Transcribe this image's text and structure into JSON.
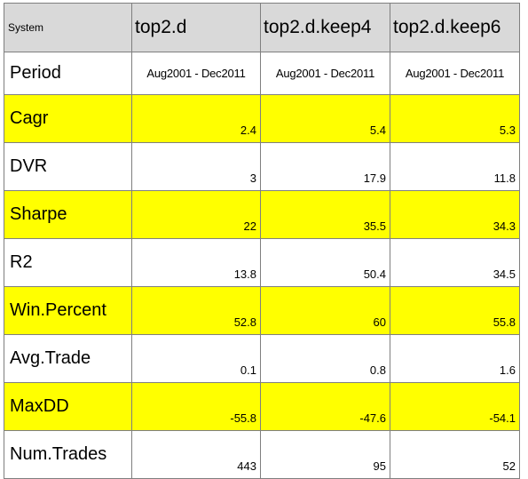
{
  "header": {
    "system_label": "System",
    "columns": [
      "top2.d",
      "top2.d.keep4",
      "top2.d.keep6"
    ]
  },
  "rows": [
    {
      "label": "Period",
      "values": [
        "Aug2001 - Dec2011",
        "Aug2001 - Dec2011",
        "Aug2001 - Dec2011"
      ],
      "highlight": false
    },
    {
      "label": "Cagr",
      "values": [
        "2.4",
        "5.4",
        "5.3"
      ],
      "highlight": true
    },
    {
      "label": "DVR",
      "values": [
        "3",
        "17.9",
        "11.8"
      ],
      "highlight": false
    },
    {
      "label": "Sharpe",
      "values": [
        "22",
        "35.5",
        "34.3"
      ],
      "highlight": true
    },
    {
      "label": "R2",
      "values": [
        "13.8",
        "50.4",
        "34.5"
      ],
      "highlight": false
    },
    {
      "label": "Win.Percent",
      "values": [
        "52.8",
        "60",
        "55.8"
      ],
      "highlight": true
    },
    {
      "label": "Avg.Trade",
      "values": [
        "0.1",
        "0.8",
        "1.6"
      ],
      "highlight": false
    },
    {
      "label": "MaxDD",
      "values": [
        "-55.8",
        "-47.6",
        "-54.1"
      ],
      "highlight": true
    },
    {
      "label": "Num.Trades",
      "values": [
        "443",
        "95",
        "52"
      ],
      "highlight": false
    }
  ],
  "colors": {
    "header_bg": "#d9d9d9",
    "highlight_bg": "#ffff00",
    "border": "#7f7f7f"
  }
}
